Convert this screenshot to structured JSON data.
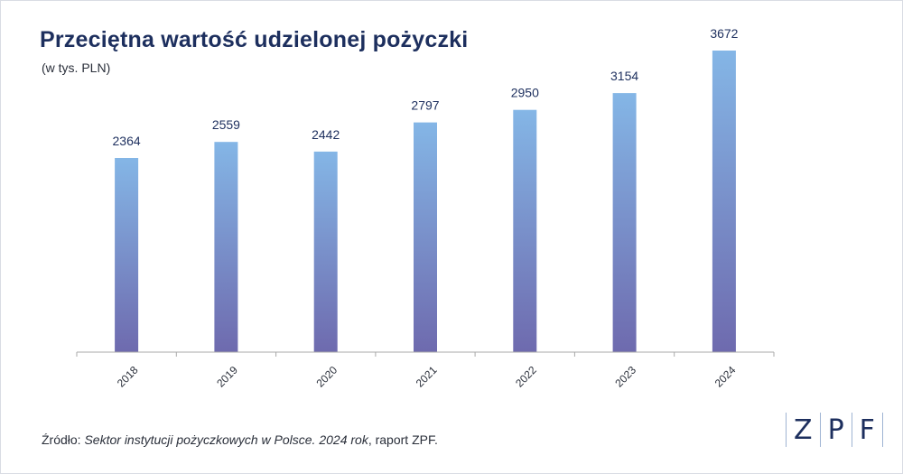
{
  "header": {
    "title": "Przeciętna wartość udzielonej pożyczki",
    "subtitle": "(w tys. PLN)"
  },
  "source": {
    "prefix": "Źródło: ",
    "italic": "Sektor instytucji pożyczkowych w Polsce. 2024 rok",
    "suffix": ", raport ZPF."
  },
  "logo": {
    "letters": [
      "Z",
      "P",
      "F"
    ]
  },
  "colors": {
    "title": "#1d2f5e",
    "bar_top": "#84b6e6",
    "bar_bottom": "#6e6aae",
    "axis": "#a8a8a8"
  },
  "chart_data": {
    "type": "bar",
    "title": "Przeciętna wartość udzielonej pożyczki",
    "subtitle": "(w tys. PLN)",
    "categories": [
      "2018",
      "2019",
      "2020",
      "2021",
      "2022",
      "2023",
      "2024"
    ],
    "values": [
      2364,
      2559,
      2442,
      2797,
      2950,
      3154,
      3672
    ],
    "ylim": [
      0,
      4000
    ],
    "grid": false,
    "legend": "none",
    "data_labels": true
  }
}
